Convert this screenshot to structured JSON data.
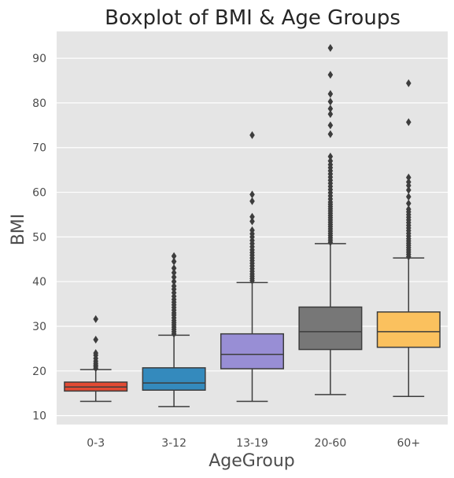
{
  "chart_data": {
    "type": "box",
    "title": "Boxplot of BMI & Age Groups",
    "xlabel": "AgeGroup",
    "ylabel": "BMI",
    "categories": [
      "0-3",
      "3-12",
      "13-19",
      "20-60",
      "60+"
    ],
    "ylim": [
      8,
      96
    ],
    "yticks": [
      10,
      20,
      30,
      40,
      50,
      60,
      70,
      80,
      90
    ],
    "grid": true,
    "background": "#e5e5e5",
    "grid_color": "#ffffff",
    "line_color": "#3d3d3d",
    "series": [
      {
        "color": "#e24a33",
        "whisker_low": 13.2,
        "q1": 15.5,
        "median": 16.4,
        "q3": 17.5,
        "whisker_high": 20.3,
        "outliers": [
          20.6,
          21.0,
          21.3,
          21.7,
          22.2,
          22.8,
          23.5,
          24.0,
          27.0,
          31.6
        ]
      },
      {
        "color": "#348abd",
        "whisker_low": 12.0,
        "q1": 15.7,
        "median": 17.3,
        "q3": 20.7,
        "whisker_high": 28.0,
        "outliers": [
          28.3,
          28.8,
          29.3,
          29.8,
          30.3,
          30.8,
          31.3,
          31.9,
          32.5,
          33.0,
          33.6,
          34.2,
          34.8,
          35.4,
          36.0,
          36.7,
          37.5,
          38.3,
          39.0,
          40.0,
          41.0,
          42.0,
          43.0,
          44.5,
          45.7
        ]
      },
      {
        "color": "#988ed5",
        "whisker_low": 13.2,
        "q1": 20.5,
        "median": 23.7,
        "q3": 28.3,
        "whisker_high": 39.8,
        "outliers": [
          40.2,
          40.7,
          41.2,
          41.7,
          42.3,
          42.9,
          43.5,
          44.1,
          44.7,
          45.3,
          45.9,
          46.5,
          47.1,
          47.8,
          48.5,
          49.2,
          50.0,
          50.7,
          51.5,
          53.5,
          54.5,
          58.0,
          59.5,
          72.8
        ]
      },
      {
        "color": "#777777",
        "whisker_low": 14.7,
        "q1": 24.8,
        "median": 28.8,
        "q3": 34.3,
        "whisker_high": 48.5,
        "outliers": [
          48.8,
          49.3,
          49.8,
          50.3,
          50.8,
          51.3,
          51.8,
          52.3,
          52.8,
          53.3,
          53.8,
          54.3,
          54.8,
          55.3,
          55.8,
          56.3,
          56.8,
          57.3,
          57.8,
          58.5,
          59.2,
          59.9,
          60.6,
          61.3,
          62.0,
          62.7,
          63.4,
          64.1,
          64.8,
          65.5,
          66.2,
          67.0,
          68.0,
          73.0,
          75.0,
          77.5,
          78.7,
          80.3,
          82.0,
          86.3,
          92.3
        ]
      },
      {
        "color": "#fbc15e",
        "whisker_low": 14.3,
        "q1": 25.3,
        "median": 28.8,
        "q3": 33.2,
        "whisker_high": 45.3,
        "outliers": [
          45.6,
          46.1,
          46.6,
          47.1,
          47.6,
          48.1,
          48.6,
          49.1,
          49.6,
          50.2,
          50.8,
          51.4,
          52.0,
          52.6,
          53.2,
          53.8,
          54.4,
          55.0,
          55.6,
          56.2,
          57.5,
          59.0,
          60.5,
          61.5,
          62.3,
          63.3,
          75.7,
          84.4
        ]
      }
    ]
  }
}
